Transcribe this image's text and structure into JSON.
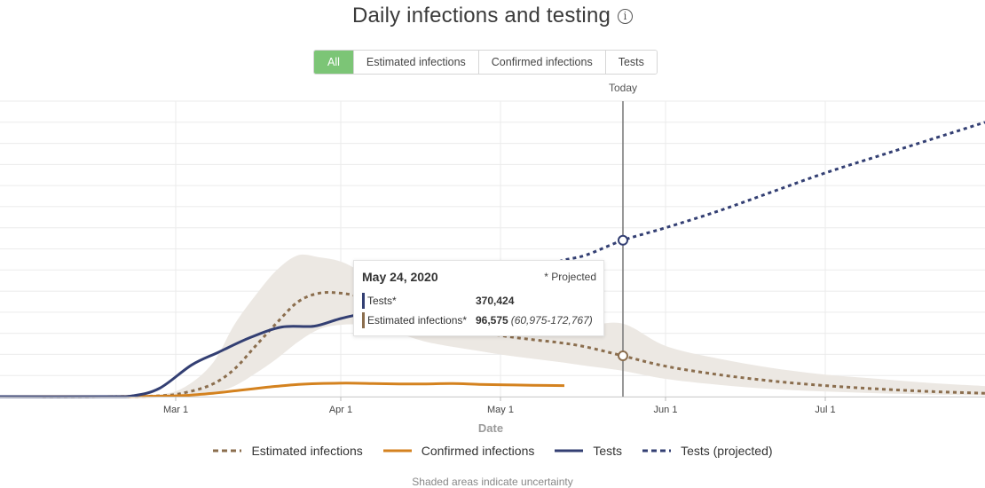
{
  "title": "Daily infections and testing",
  "title_info_glyph": "i",
  "tabs": [
    {
      "label": "All",
      "active": true
    },
    {
      "label": "Estimated infections",
      "active": false
    },
    {
      "label": "Confirmed infections",
      "active": false
    },
    {
      "label": "Tests",
      "active": false
    }
  ],
  "colors": {
    "estimated": "#8b6e4e",
    "confirmed": "#d4821f",
    "tests": "#333f73",
    "band": "#ece8e3",
    "grid": "#ebebeb",
    "tab_active": "#7cc576"
  },
  "tooltip": {
    "date": "May 24, 2020",
    "projected_note": "* Projected",
    "rows": [
      {
        "label": "Tests*",
        "value": "370,424",
        "range": "",
        "color": "#333f73"
      },
      {
        "label": "Estimated infections*",
        "value": "96,575",
        "range": "(60,975-172,767)",
        "color": "#8b6e4e"
      }
    ]
  },
  "legend": [
    {
      "label": "Estimated infections",
      "style": "dotted",
      "color": "#8b6e4e"
    },
    {
      "label": "Confirmed infections",
      "style": "solid",
      "color": "#d4821f"
    },
    {
      "label": "Tests",
      "style": "solid",
      "color": "#333f73"
    },
    {
      "label": "Tests (projected)",
      "style": "dotted",
      "color": "#333f73"
    }
  ],
  "footnote": "Shaded areas indicate uncertainty",
  "chart_data": {
    "type": "line",
    "xlabel": "Date",
    "ylabel": "",
    "x_unit": "days since Jan 28, 2020",
    "x_range": [
      0,
      185
    ],
    "ylim": [
      0,
      700000
    ],
    "y_tick_labels_visible": false,
    "grid": true,
    "legend_placement": "bottom",
    "x_ticks": [
      {
        "label": "Mar 1",
        "day": 33
      },
      {
        "label": "Apr 1",
        "day": 64
      },
      {
        "label": "May 1",
        "day": 94
      },
      {
        "label": "Jun 1",
        "day": 125
      },
      {
        "label": "Jul 1",
        "day": 155
      }
    ],
    "today_marker": {
      "label": "Today",
      "day": 117,
      "date": "May 24, 2020"
    },
    "series": [
      {
        "name": "Estimated infections",
        "style": "dotted",
        "x": [
          0,
          20,
          30,
          35,
          40,
          44,
          48,
          52,
          56,
          60,
          64,
          68,
          72,
          76,
          80,
          85,
          90,
          95,
          100,
          105,
          110,
          117,
          125,
          135,
          145,
          155,
          165,
          175,
          185
        ],
        "y": [
          0,
          0,
          2000,
          10000,
          30000,
          65000,
          120000,
          175000,
          225000,
          245000,
          245000,
          235000,
          215000,
          195000,
          180000,
          165000,
          153000,
          143000,
          135000,
          128000,
          118000,
          96575,
          72000,
          52000,
          37000,
          26000,
          18000,
          12000,
          8000
        ]
      },
      {
        "name": "Estimated infections (uncertainty)",
        "x": [
          0,
          20,
          30,
          35,
          40,
          44,
          48,
          52,
          56,
          60,
          64,
          68,
          72,
          76,
          80,
          85,
          90,
          95,
          100,
          105,
          110,
          117,
          125,
          135,
          145,
          155,
          165,
          175,
          185
        ],
        "upper": [
          0,
          0,
          5000,
          25000,
          80000,
          170000,
          240000,
          300000,
          335000,
          330000,
          320000,
          295000,
          270000,
          250000,
          235000,
          220000,
          205000,
          195000,
          185000,
          178000,
          168000,
          172767,
          120000,
          90000,
          68000,
          52000,
          42000,
          32000,
          25000
        ],
        "lower": [
          0,
          0,
          0,
          2000,
          8000,
          25000,
          55000,
          90000,
          130000,
          160000,
          170000,
          170000,
          160000,
          145000,
          130000,
          118000,
          108000,
          98000,
          90000,
          82000,
          73000,
          60975,
          42000,
          28000,
          18000,
          12000,
          8000,
          5000,
          3000
        ]
      },
      {
        "name": "Confirmed infections",
        "style": "solid",
        "x": [
          0,
          20,
          30,
          35,
          40,
          45,
          50,
          55,
          60,
          65,
          70,
          75,
          80,
          85,
          90,
          95,
          100,
          106
        ],
        "y": [
          0,
          0,
          1000,
          3000,
          8000,
          15000,
          22000,
          28000,
          31000,
          32000,
          31000,
          30000,
          30000,
          31000,
          29000,
          28000,
          27000,
          26000
        ]
      },
      {
        "name": "Tests",
        "style": "solid",
        "x": [
          0,
          20,
          25,
          30,
          36,
          41,
          47,
          53,
          59,
          64,
          71,
          77,
          84,
          90,
          95
        ],
        "y": [
          0,
          0,
          2000,
          20000,
          75000,
          105000,
          140000,
          165000,
          167000,
          185000,
          205000,
          225000,
          240000,
          260000,
          275000
        ]
      },
      {
        "name": "Tests (projected)",
        "style": "dotted",
        "x": [
          95,
          100,
          105,
          110,
          117,
          125,
          135,
          145,
          155,
          165,
          175,
          185
        ],
        "y": [
          275000,
          290000,
          320000,
          335000,
          370424,
          400000,
          440000,
          485000,
          530000,
          570000,
          610000,
          650000
        ]
      }
    ]
  }
}
